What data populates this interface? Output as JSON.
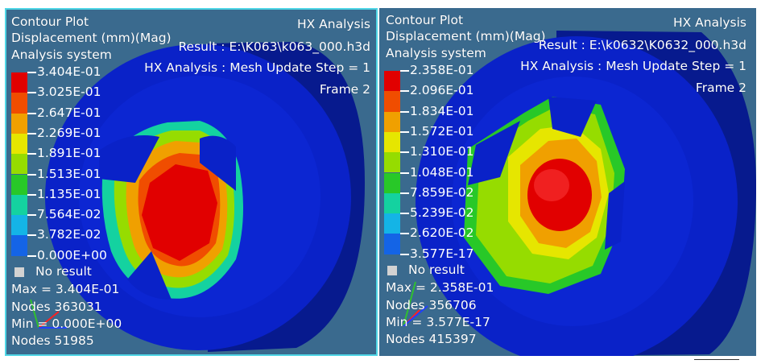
{
  "colors": {
    "viewport_bg": "#3a6a8e",
    "model_blue": "#0a22c8",
    "model_dark": "#071a8e",
    "accent_cyan": "#4fd6e6",
    "legend": [
      "#e10000",
      "#f04d00",
      "#f0a000",
      "#e6e600",
      "#96dc00",
      "#28c828",
      "#14d2a0",
      "#14b4e6",
      "#1464e6",
      "#0a1eb4"
    ]
  },
  "left": {
    "title": "Contour Plot",
    "quantity": "Displacement (mm)(Mag)",
    "system": "Analysis system",
    "solver": "HX Analysis",
    "result": "Result : E:\\K063\\k063_000.h3d",
    "step": "HX Analysis : Mesh Update Step = 1",
    "frame": "Frame 2",
    "legend": [
      "3.404E-01",
      "3.025E-01",
      "2.647E-01",
      "2.269E-01",
      "1.891E-01",
      "1.513E-01",
      "1.135E-01",
      "7.564E-02",
      "3.782E-02",
      "0.000E+00"
    ],
    "no_result": "No result",
    "max": "Max = 3.404E-01",
    "max_nodes": "Nodes 363031",
    "min": "Min = 0.000E+00",
    "min_nodes": "Nodes 51985"
  },
  "right": {
    "title": "Contour Plot",
    "quantity": "Displacement (mm)(Mag)",
    "system": "Analysis system",
    "solver": "HX Analysis",
    "result": "Result : E:\\k0632\\K0632_000.h3d",
    "step": "HX Analysis : Mesh Update Step = 1",
    "frame": "Frame 2",
    "legend": [
      "2.358E-01",
      "2.096E-01",
      "1.834E-01",
      "1.572E-01",
      "1.310E-01",
      "1.048E-01",
      "7.859E-02",
      "5.239E-02",
      "2.620E-02",
      "3.577E-17"
    ],
    "no_result": "No result",
    "max": "Max = 2.358E-01",
    "max_nodes": "Nodes 356706",
    "min": "Min = 3.577E-17",
    "min_nodes": "Nodes 415397"
  }
}
